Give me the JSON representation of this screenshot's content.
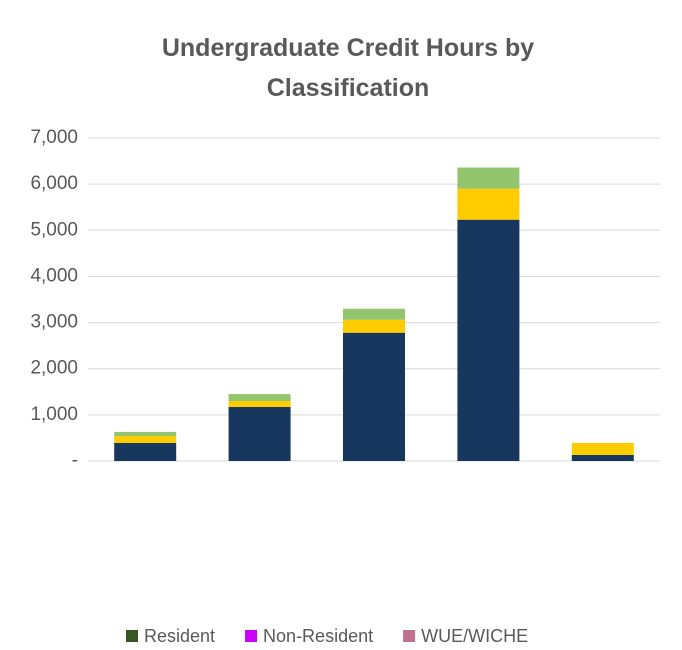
{
  "chart_data": {
    "type": "stacked_bar",
    "title": "Undergraduate Credit Hours by Classification",
    "categories": [
      null,
      null,
      null,
      null,
      null
    ],
    "series": [
      {
        "name": "Resident",
        "color": "#17375e",
        "legend_color": "#375623",
        "values": [
          390,
          1170,
          2780,
          5230,
          130
        ]
      },
      {
        "name": "Non-Resident",
        "color": "#ffcc00",
        "legend_color": "#cc00ff",
        "values": [
          150,
          130,
          280,
          670,
          260
        ]
      },
      {
        "name": "WUE/WICHE",
        "color": "#92c56e",
        "legend_color": "#c07090",
        "values": [
          90,
          150,
          240,
          460,
          0
        ]
      }
    ],
    "ylim": [
      0,
      7000
    ],
    "yticks": [
      {
        "value": 0,
        "label": "-"
      },
      {
        "value": 1000,
        "label": "1,000"
      },
      {
        "value": 2000,
        "label": "2,000"
      },
      {
        "value": 3000,
        "label": "3,000"
      },
      {
        "value": 4000,
        "label": "4,000"
      },
      {
        "value": 5000,
        "label": "5,000"
      },
      {
        "value": 6000,
        "label": "6,000"
      },
      {
        "value": 7000,
        "label": "7,000"
      }
    ],
    "grid": true,
    "legend": "bottom"
  }
}
